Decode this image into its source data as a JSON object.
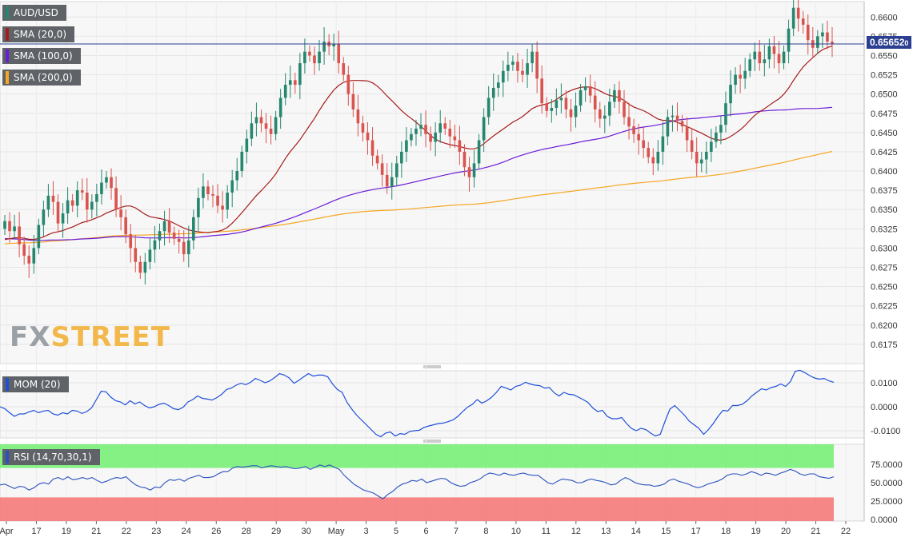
{
  "labels": {
    "symbol": "AUD/USD",
    "sma20": "SMA (20,0)",
    "sma100": "SMA (100,0)",
    "sma200": "SMA (200,0)",
    "mom": "MOM (20)",
    "rsi": "RSI (14,70,30,1)",
    "price_tag": "0.65652",
    "price_tag_suffix": "0",
    "watermark_a": "FX",
    "watermark_b": "STREET"
  },
  "colors": {
    "bull": "#26876e",
    "bear": "#d9534f",
    "sma20": "#a61b1b",
    "sma100": "#6a1bd6",
    "sma200": "#f5a623",
    "mom": "#1f4fd8",
    "rsi": "#2a52be",
    "overbought": "#78f078",
    "oversold": "#f47a7a",
    "price_line": "#2a3f8f"
  },
  "chart_data": [
    {
      "type": "candlestick",
      "title": "AUD/USD",
      "ylim": [
        0.615,
        0.662
      ],
      "y_ticks": [
        "0.6175",
        "0.6200",
        "0.6225",
        "0.6250",
        "0.6275",
        "0.6300",
        "0.6325",
        "0.6350",
        "0.6375",
        "0.6400",
        "0.6425",
        "0.6450",
        "0.6475",
        "0.6500",
        "0.6525",
        "0.6550",
        "0.6575",
        "0.6600"
      ],
      "x_ticks": [
        "Apr",
        "17",
        "19",
        "21",
        "22",
        "23",
        "24",
        "26",
        "28",
        "29",
        "30",
        "May",
        "3",
        "5",
        "6",
        "7",
        "8",
        "10",
        "11",
        "12",
        "13",
        "14",
        "15",
        "17",
        "18",
        "19",
        "20",
        "21",
        "22"
      ],
      "last_price": 0.6565,
      "candles_close": [
        0.6335,
        0.6322,
        0.6328,
        0.6305,
        0.629,
        0.628,
        0.63,
        0.633,
        0.635,
        0.6368,
        0.636,
        0.6332,
        0.6345,
        0.6362,
        0.6355,
        0.6375,
        0.6372,
        0.635,
        0.636,
        0.637,
        0.6385,
        0.6392,
        0.6378,
        0.635,
        0.634,
        0.6318,
        0.63,
        0.6282,
        0.6268,
        0.6282,
        0.6298,
        0.631,
        0.6322,
        0.6335,
        0.632,
        0.6312,
        0.6308,
        0.6292,
        0.631,
        0.634,
        0.6365,
        0.638,
        0.637,
        0.6368,
        0.6355,
        0.635,
        0.6372,
        0.6388,
        0.64,
        0.6425,
        0.6442,
        0.6462,
        0.647,
        0.6462,
        0.6455,
        0.6448,
        0.647,
        0.6495,
        0.6512,
        0.6518,
        0.6512,
        0.654,
        0.6555,
        0.655,
        0.654,
        0.6555,
        0.6568,
        0.6562,
        0.6565,
        0.654,
        0.6525,
        0.65,
        0.648,
        0.6462,
        0.645,
        0.644,
        0.642,
        0.641,
        0.6395,
        0.638,
        0.6392,
        0.641,
        0.6425,
        0.644,
        0.6448,
        0.6455,
        0.646,
        0.6448,
        0.6438,
        0.645,
        0.6462,
        0.6455,
        0.6445,
        0.644,
        0.6425,
        0.6405,
        0.6392,
        0.641,
        0.644,
        0.647,
        0.6495,
        0.6508,
        0.6515,
        0.653,
        0.6538,
        0.6542,
        0.653,
        0.6525,
        0.654,
        0.6555,
        0.652,
        0.6488,
        0.6478,
        0.6482,
        0.6492,
        0.6495,
        0.648,
        0.647,
        0.6485,
        0.6505,
        0.651,
        0.6498,
        0.648,
        0.6468,
        0.6472,
        0.649,
        0.6505,
        0.649,
        0.647,
        0.6458,
        0.6448,
        0.644,
        0.643,
        0.6418,
        0.641,
        0.6425,
        0.6445,
        0.647,
        0.6472,
        0.6465,
        0.6458,
        0.644,
        0.6425,
        0.641,
        0.6415,
        0.6425,
        0.6438,
        0.645,
        0.646,
        0.6488,
        0.6512,
        0.6525,
        0.652,
        0.653,
        0.6545,
        0.6555,
        0.654,
        0.6545,
        0.6562,
        0.6552,
        0.654,
        0.6555,
        0.6585,
        0.6612,
        0.6598,
        0.659,
        0.657,
        0.656,
        0.6575,
        0.658,
        0.6568,
        0.6565
      ]
    },
    {
      "type": "line",
      "title": "MOM (20)",
      "ylim": [
        -0.013,
        0.015
      ],
      "y_ticks": [
        "0.0100",
        "0.0000",
        "-0.0100"
      ],
      "values": [
        0.0,
        -0.0008,
        -0.0025,
        -0.004,
        -0.003,
        -0.003,
        -0.0022,
        -0.0015,
        -0.0025,
        -0.0018,
        -0.0015,
        -0.003,
        -0.0035,
        -0.0025,
        -0.003,
        -0.0015,
        -0.0018,
        -0.0028,
        -0.002,
        -0.0005,
        0.003,
        0.0065,
        0.0062,
        0.004,
        0.0025,
        0.002,
        0.0008,
        0.0025,
        0.0012,
        0.002,
        0.0005,
        -0.0005,
        0.0,
        0.001,
        0.0015,
        0.0005,
        -0.0008,
        -0.0012,
        -0.0002,
        0.002,
        0.003,
        0.0045,
        0.0035,
        0.0032,
        0.0028,
        0.0038,
        0.0052,
        0.0072,
        0.0078,
        0.009,
        0.0098,
        0.0092,
        0.0102,
        0.0118,
        0.011,
        0.01,
        0.0108,
        0.0122,
        0.0138,
        0.0132,
        0.012,
        0.0098,
        0.011,
        0.0125,
        0.0138,
        0.0128,
        0.0132,
        0.0132,
        0.0125,
        0.0095,
        0.0072,
        0.006,
        0.0018,
        -0.001,
        -0.0035,
        -0.0055,
        -0.0075,
        -0.0095,
        -0.0115,
        -0.0125,
        -0.011,
        -0.0105,
        -0.0122,
        -0.0112,
        -0.0115,
        -0.0103,
        -0.01,
        -0.0098,
        -0.0086,
        -0.008,
        -0.0075,
        -0.007,
        -0.0068,
        -0.0062,
        -0.0055,
        -0.004,
        -0.002,
        -0.0002,
        0.001,
        0.003,
        0.0015,
        0.0025,
        0.004,
        0.006,
        0.0085,
        0.0078,
        0.007,
        0.0085,
        0.009,
        0.0102,
        0.0095,
        0.009,
        0.0088,
        0.0078,
        0.008,
        0.0058,
        0.0045,
        0.006,
        0.0052,
        0.005,
        0.004,
        0.003,
        0.0018,
        -0.0005,
        -0.002,
        -0.0015,
        -0.004,
        -0.005,
        -0.005,
        -0.0045,
        -0.007,
        -0.009,
        -0.01,
        -0.009,
        -0.0095,
        -0.011,
        -0.0122,
        -0.0115,
        -0.006,
        -0.001,
        0.0005,
        -0.0015,
        -0.0035,
        -0.006,
        -0.0075,
        -0.009,
        -0.0115,
        -0.0095,
        -0.007,
        -0.004,
        -0.0015,
        -0.0018,
        0.0005,
        0.0005,
        0.001,
        0.0025,
        0.0045,
        0.006,
        0.0075,
        0.007,
        0.008,
        0.0085,
        0.0095,
        0.0085,
        0.0105,
        0.0148,
        0.0152,
        0.0142,
        0.013,
        0.012,
        0.0115,
        0.0118,
        0.0108,
        0.0102
      ]
    },
    {
      "type": "line",
      "title": "RSI (14,70,30,1)",
      "ylim": [
        0,
        100
      ],
      "y_ticks": [
        "75.0000",
        "50.0000",
        "25.0000",
        "0.0000"
      ],
      "overbought": 70,
      "oversold": 30,
      "values": [
        47,
        48,
        45,
        42,
        45,
        44,
        40,
        43,
        48,
        50,
        48,
        55,
        57,
        54,
        58,
        54,
        55,
        57,
        55,
        57,
        53,
        50,
        52,
        55,
        57,
        56,
        58,
        52,
        47,
        44,
        43,
        40,
        44,
        43,
        50,
        54,
        53,
        55,
        52,
        56,
        58,
        60,
        57,
        57,
        58,
        62,
        65,
        65,
        70,
        72,
        71,
        72,
        73,
        73,
        70,
        72,
        73,
        72,
        71,
        72,
        70,
        69,
        70,
        72,
        68,
        71,
        74,
        72,
        74,
        71,
        68,
        60,
        54,
        48,
        44,
        40,
        38,
        36,
        32,
        28,
        34,
        38,
        44,
        48,
        50,
        53,
        52,
        55,
        50,
        52,
        54,
        56,
        55,
        50,
        47,
        45,
        46,
        50,
        52,
        55,
        60,
        63,
        62,
        60,
        63,
        61,
        60,
        62,
        63,
        61,
        60,
        60,
        55,
        50,
        48,
        52,
        55,
        54,
        53,
        50,
        50,
        53,
        55,
        53,
        52,
        50,
        47,
        48,
        53,
        57,
        54,
        50,
        48,
        47,
        47,
        45,
        46,
        48,
        53,
        55,
        52,
        50,
        48,
        45,
        43,
        45,
        48,
        50,
        52,
        55,
        60,
        62,
        62,
        60,
        62,
        65,
        63,
        60,
        63,
        62,
        60,
        63,
        65,
        68,
        66,
        62,
        60,
        62,
        62,
        58,
        57,
        56,
        58
      ]
    }
  ]
}
